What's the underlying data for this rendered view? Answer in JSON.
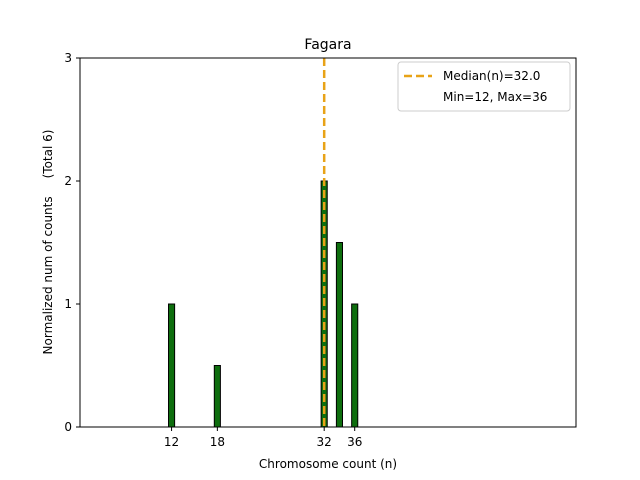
{
  "chart_data": {
    "type": "bar",
    "title": "Fagara",
    "xlabel": "Chromosome count (n)",
    "ylabel": "Normalized num of counts",
    "ylabel_note": "(Total 6)",
    "x": [
      12,
      18,
      32,
      34,
      36
    ],
    "values": [
      1,
      0.5,
      2,
      1.5,
      1
    ],
    "xticks": [
      12,
      18,
      32,
      36
    ],
    "yticks": [
      0,
      1,
      2,
      3
    ],
    "xlim": [
      0,
      65
    ],
    "ylim": [
      0,
      3
    ],
    "bar_width": 0.8,
    "median": 32.0,
    "legend": {
      "placement": "top-right",
      "median_label": "Median(n)=32.0",
      "range_label": "Min=12, Max=36"
    },
    "colors": {
      "bar_fill": "#0e6e0e",
      "bar_edge": "#000000",
      "median_line": "#e8a317"
    }
  }
}
